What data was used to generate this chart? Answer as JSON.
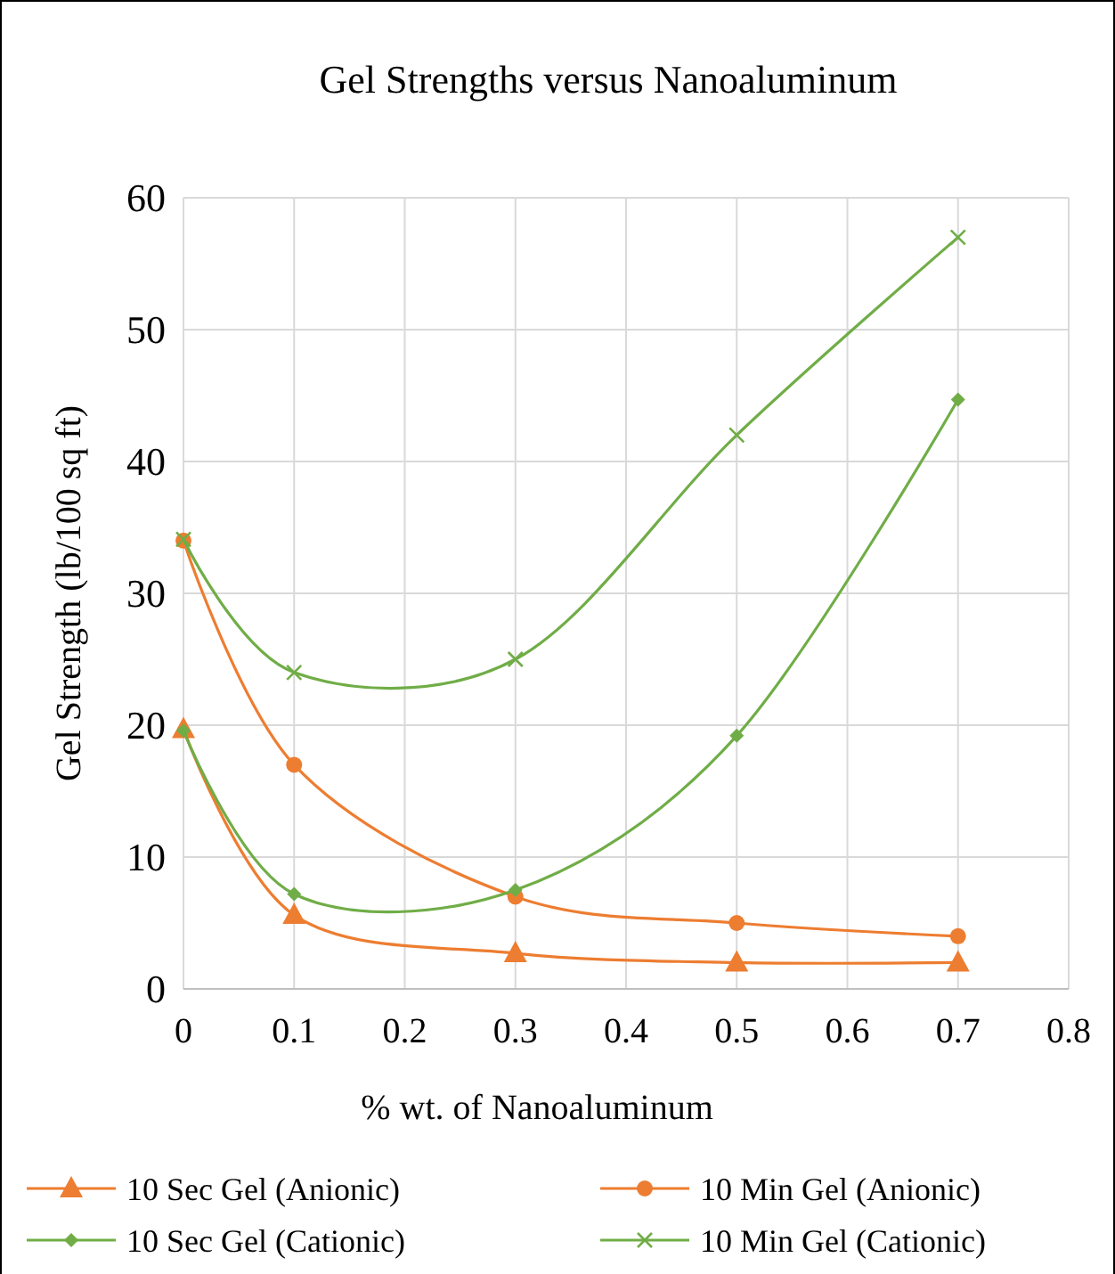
{
  "chart_data": {
    "type": "line",
    "title": "Gel Strengths versus Nanoaluminum",
    "xlabel": "% wt. of  Nanoaluminum",
    "ylabel": "Gel Strength (lb/100 sq ft)",
    "x": [
      0,
      0.1,
      0.3,
      0.5,
      0.7
    ],
    "series": [
      {
        "name": "10 Sec Gel (Anionic)",
        "color": "#ed7d31",
        "marker": "triangle",
        "values": [
          19.7,
          5.6,
          2.7,
          2.0,
          2.0
        ]
      },
      {
        "name": "10 Min Gel (Anionic)",
        "color": "#ed7d31",
        "marker": "circle",
        "values": [
          34.0,
          17.0,
          7.0,
          5.0,
          4.0
        ]
      },
      {
        "name": "10 Sec Gel (Cationic)",
        "color": "#70ad47",
        "marker": "diamond",
        "values": [
          19.6,
          7.2,
          7.5,
          19.2,
          44.7
        ]
      },
      {
        "name": "10 Min Gel (Cationic)",
        "color": "#70ad47",
        "marker": "cross",
        "values": [
          34.1,
          24.0,
          25.0,
          42.0,
          57.0
        ]
      }
    ],
    "xlim": [
      0,
      0.8
    ],
    "xticks": [
      0,
      0.1,
      0.2,
      0.3,
      0.4,
      0.5,
      0.6,
      0.7,
      0.8
    ],
    "ylim": [
      0,
      60
    ],
    "yticks": [
      0,
      10,
      20,
      30,
      40,
      50,
      60
    ],
    "grid": true,
    "legend": "bottom",
    "line_style": "solid"
  }
}
